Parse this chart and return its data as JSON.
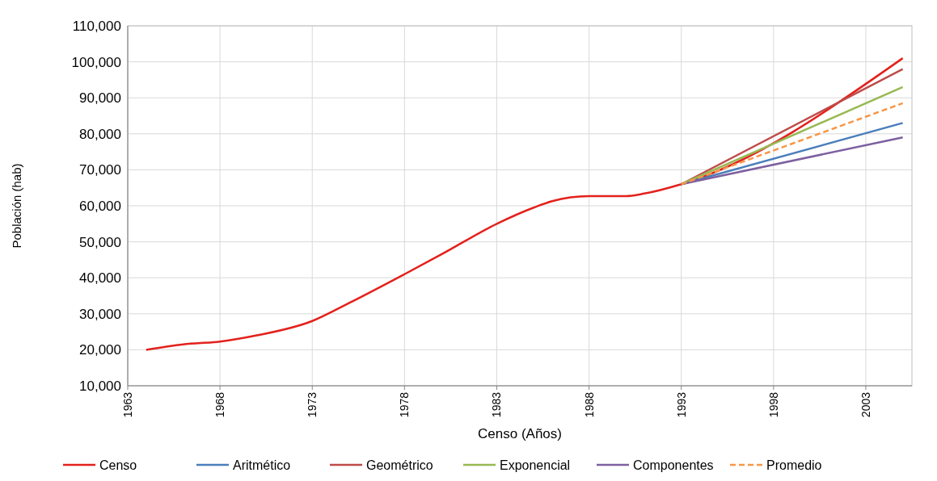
{
  "chart_data": {
    "type": "line",
    "xlabel": "Censo (Años)",
    "ylabel": "Población (hab)",
    "xlim": [
      1963,
      2005.5
    ],
    "xticks": [
      1963,
      1968,
      1973,
      1978,
      1983,
      1988,
      1993,
      1998,
      2003
    ],
    "ylim": [
      10000,
      110000
    ],
    "yticks": [
      {
        "value": 10000,
        "label": "10,000"
      },
      {
        "value": 20000,
        "label": "20,000"
      },
      {
        "value": 30000,
        "label": "30,000"
      },
      {
        "value": 40000,
        "label": "40,000"
      },
      {
        "value": 50000,
        "label": "50,000"
      },
      {
        "value": 60000,
        "label": "60,000"
      },
      {
        "value": 70000,
        "label": "70,000"
      },
      {
        "value": 80000,
        "label": "80,000"
      },
      {
        "value": 90000,
        "label": "90,000"
      },
      {
        "value": 100000,
        "label": "100,000"
      },
      {
        "value": 110000,
        "label": "110,000"
      }
    ],
    "grid": true,
    "legend": "bottom",
    "marker": "none",
    "series": [
      {
        "name": "Censo",
        "color": "#e3211c",
        "x": [
          1964,
          1966,
          1968,
          1970,
          1973,
          1975,
          1978,
          1980,
          1983,
          1985,
          1986,
          1988,
          1990,
          1991,
          1993,
          2005
        ],
        "values": [
          20000,
          21500,
          22300,
          24000,
          28000,
          33000,
          41000,
          46500,
          55000,
          59500,
          61300,
          62700,
          62700,
          63400,
          66000,
          101000
        ]
      },
      {
        "name": "Aritmético",
        "color": "#4a7ebb",
        "x": [
          1993,
          2005
        ],
        "values": [
          66000,
          83000
        ]
      },
      {
        "name": "Geométrico",
        "color": "#be4b48",
        "x": [
          1993,
          2005
        ],
        "values": [
          66000,
          98000
        ]
      },
      {
        "name": "Exponencial",
        "color": "#98b954",
        "x": [
          1993,
          2005
        ],
        "values": [
          66000,
          93000
        ]
      },
      {
        "name": "Componentes",
        "color": "#7d60a0",
        "x": [
          1993,
          2005
        ],
        "values": [
          66000,
          79000
        ]
      },
      {
        "name": "Promedio",
        "color": "#f79646",
        "line_style": "dashed",
        "x": [
          1993,
          2005
        ],
        "values": [
          66000,
          88500
        ]
      }
    ]
  }
}
